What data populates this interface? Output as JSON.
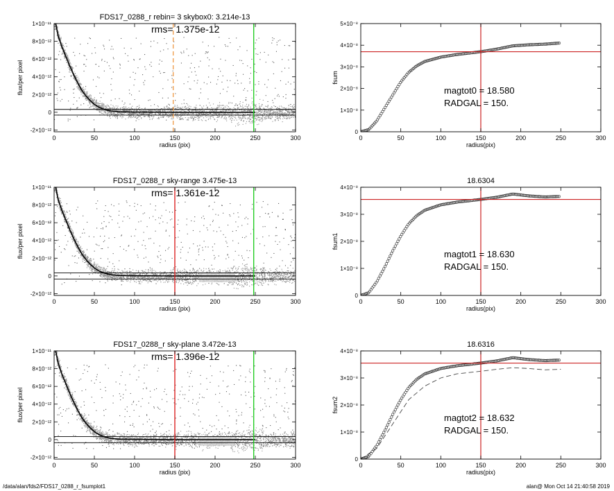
{
  "footer": {
    "path": "/data/alan/fds2/FDS17_0288_r_fsumplot1",
    "stamp": "alan@  Mon Oct 14 21:40:58 2019"
  },
  "chart_data": [
    {
      "type": "scatter",
      "title": "FDS17_0288_r rebin= 3    skybox0:  3.214e-13",
      "annotation": "rms= 1.375e-12",
      "xlabel": "radius (pix)",
      "ylabel": "flux/per pixel",
      "xlim": [
        0,
        300
      ],
      "ylim": [
        -2.2e-12,
        1e-11
      ],
      "xticks": [
        0,
        50,
        100,
        150,
        200,
        250,
        300
      ],
      "yticks": [
        "1×10⁻¹¹",
        "8×10⁻¹²",
        "6×10⁻¹²",
        "4×10⁻¹²",
        "2×10⁻¹²",
        "0",
        "-2×10⁻¹²"
      ],
      "ytick_values": [
        1e-11,
        8e-12,
        6e-12,
        4e-12,
        2e-12,
        0,
        -2e-12
      ],
      "profile_x": [
        2,
        5,
        10,
        15,
        20,
        25,
        30,
        35,
        40,
        45,
        50,
        55,
        60,
        65,
        70,
        80,
        100,
        150,
        200,
        250
      ],
      "profile_y": [
        1e-11,
        8.6e-12,
        7.3e-12,
        6.2e-12,
        5.1e-12,
        4.1e-12,
        3.2e-12,
        2.4e-12,
        1.8e-12,
        1.3e-12,
        9e-13,
        6e-13,
        4e-13,
        2.5e-13,
        1.5e-13,
        5e-14,
        2e-14,
        0,
        0,
        0
      ],
      "hlines": [
        3.214e-13,
        -3.214e-13
      ],
      "vlines": [
        {
          "x": 148,
          "color": "#f0a050",
          "style": "dashed"
        },
        {
          "x": 248,
          "color": "#22cc22",
          "style": "solid"
        }
      ]
    },
    {
      "type": "scatter",
      "title": "",
      "annotation": "magtot0 =  18.580",
      "annotation2": "RADGAL =    150.",
      "xlabel": "radius(pix)",
      "ylabel": "fsum",
      "xlim": [
        0,
        300
      ],
      "ylim": [
        0,
        5e-08
      ],
      "xticks": [
        0,
        50,
        100,
        150,
        200,
        250,
        300
      ],
      "yticks": [
        "5×10⁻⁸",
        "4×10⁻⁸",
        "3×10⁻⁸",
        "2×10⁻⁸",
        "1×10⁻⁸",
        "0"
      ],
      "ytick_values": [
        5e-08,
        4e-08,
        3e-08,
        2e-08,
        1e-08,
        0
      ],
      "x": [
        0,
        10,
        20,
        30,
        40,
        50,
        60,
        70,
        80,
        100,
        120,
        150,
        170,
        190,
        210,
        230,
        248
      ],
      "y": [
        0,
        1e-09,
        5e-09,
        1.1e-08,
        1.7e-08,
        2.3e-08,
        2.75e-08,
        3.05e-08,
        3.25e-08,
        3.45e-08,
        3.57e-08,
        3.7e-08,
        3.82e-08,
        3.97e-08,
        4.02e-08,
        4.05e-08,
        4.1e-08
      ],
      "dashed_x": [],
      "dashed_y": [],
      "hline": 3.7e-08,
      "vline": 150
    },
    {
      "type": "scatter",
      "title": "FDS17_0288_r sky-range  3.475e-13",
      "annotation": "rms= 1.361e-12",
      "xlabel": "radius (pix)",
      "ylabel": "flux/per pixel",
      "xlim": [
        0,
        300
      ],
      "ylim": [
        -2.2e-12,
        1e-11
      ],
      "xticks": [
        0,
        50,
        100,
        150,
        200,
        250,
        300
      ],
      "yticks": [
        "1×10⁻¹¹",
        "8×10⁻¹²",
        "6×10⁻¹²",
        "4×10⁻¹²",
        "2×10⁻¹²",
        "0",
        "-2×10⁻¹²"
      ],
      "ytick_values": [
        1e-11,
        8e-12,
        6e-12,
        4e-12,
        2e-12,
        0,
        -2e-12
      ],
      "profile_x": [
        2,
        5,
        10,
        15,
        20,
        25,
        30,
        35,
        40,
        45,
        50,
        55,
        60,
        65,
        70,
        80,
        100,
        150,
        200,
        250
      ],
      "profile_y": [
        1e-11,
        8.6e-12,
        7.3e-12,
        6.2e-12,
        5.1e-12,
        4.1e-12,
        3.2e-12,
        2.4e-12,
        1.8e-12,
        1.3e-12,
        9e-13,
        6e-13,
        4e-13,
        2.5e-13,
        1.5e-13,
        5e-14,
        2e-14,
        0,
        0,
        0
      ],
      "hlines": [
        3.475e-13,
        -3.475e-13
      ],
      "vlines": [
        {
          "x": 150,
          "color": "#dd2222",
          "style": "solid"
        },
        {
          "x": 248,
          "color": "#22cc22",
          "style": "solid"
        }
      ]
    },
    {
      "type": "scatter",
      "title": "18.6304",
      "annotation": "magtot1 =  18.630",
      "annotation2": "RADGAL =    150.",
      "xlabel": "radius(pix)",
      "ylabel": "fsum1",
      "xlim": [
        0,
        300
      ],
      "ylim": [
        0,
        4e-08
      ],
      "xticks": [
        0,
        50,
        100,
        150,
        200,
        250,
        300
      ],
      "yticks": [
        "4×10⁻⁸",
        "3×10⁻⁸",
        "2×10⁻⁸",
        "1×10⁻⁸",
        "0"
      ],
      "ytick_values": [
        4e-08,
        3e-08,
        2e-08,
        1e-08,
        0
      ],
      "x": [
        0,
        10,
        20,
        30,
        40,
        50,
        60,
        70,
        80,
        100,
        120,
        150,
        170,
        190,
        210,
        230,
        248
      ],
      "y": [
        0,
        1e-09,
        5e-09,
        1.05e-08,
        1.65e-08,
        2.2e-08,
        2.65e-08,
        2.95e-08,
        3.15e-08,
        3.35e-08,
        3.45e-08,
        3.55e-08,
        3.63e-08,
        3.75e-08,
        3.68e-08,
        3.64e-08,
        3.66e-08
      ],
      "dashed_x": [],
      "dashed_y": [],
      "hline": 3.55e-08,
      "vline": 150
    },
    {
      "type": "scatter",
      "title": "FDS17_0288_r sky-plane  3.472e-13",
      "annotation": "rms= 1.396e-12",
      "xlabel": "radius (pix)",
      "ylabel": "flux/per pixel",
      "xlim": [
        0,
        300
      ],
      "ylim": [
        -2.2e-12,
        1e-11
      ],
      "xticks": [
        0,
        50,
        100,
        150,
        200,
        250,
        300
      ],
      "yticks": [
        "1×10⁻¹¹",
        "8×10⁻¹²",
        "6×10⁻¹²",
        "4×10⁻¹²",
        "2×10⁻¹²",
        "0",
        "-2×10⁻¹²"
      ],
      "ytick_values": [
        1e-11,
        8e-12,
        6e-12,
        4e-12,
        2e-12,
        0,
        -2e-12
      ],
      "profile_x": [
        2,
        5,
        10,
        15,
        20,
        25,
        30,
        35,
        40,
        45,
        50,
        55,
        60,
        65,
        70,
        80,
        100,
        150,
        200,
        250
      ],
      "profile_y": [
        1e-11,
        8.6e-12,
        7.3e-12,
        6.2e-12,
        5.1e-12,
        4.1e-12,
        3.2e-12,
        2.4e-12,
        1.8e-12,
        1.3e-12,
        9e-13,
        6e-13,
        4e-13,
        2.5e-13,
        1.5e-13,
        5e-14,
        2e-14,
        0,
        0,
        0
      ],
      "hlines": [
        3.472e-13,
        -3.472e-13
      ],
      "vlines": [
        {
          "x": 150,
          "color": "#dd2222",
          "style": "solid"
        },
        {
          "x": 248,
          "color": "#22cc22",
          "style": "solid"
        }
      ]
    },
    {
      "type": "scatter",
      "title": "18.6316",
      "annotation": "magtot2 =  18.632",
      "annotation2": "RADGAL =    150.",
      "xlabel": "radius(pix)",
      "ylabel": "fsum2",
      "xlim": [
        0,
        300
      ],
      "ylim": [
        0,
        4e-08
      ],
      "xticks": [
        0,
        50,
        100,
        150,
        200,
        250,
        300
      ],
      "yticks": [
        "4×10⁻⁸",
        "3×10⁻⁸",
        "2×10⁻⁸",
        "1×10⁻⁸",
        "0"
      ],
      "ytick_values": [
        4e-08,
        3e-08,
        2e-08,
        1e-08,
        0
      ],
      "x": [
        0,
        10,
        20,
        30,
        40,
        50,
        60,
        70,
        80,
        100,
        120,
        150,
        170,
        190,
        210,
        230,
        248
      ],
      "y": [
        0,
        1e-09,
        5e-09,
        1.05e-08,
        1.65e-08,
        2.2e-08,
        2.65e-08,
        2.95e-08,
        3.15e-08,
        3.35e-08,
        3.45e-08,
        3.55e-08,
        3.63e-08,
        3.75e-08,
        3.68e-08,
        3.64e-08,
        3.66e-08
      ],
      "dashed_x": [
        0,
        20,
        40,
        60,
        80,
        100,
        120,
        150,
        170,
        190,
        210,
        230,
        250
      ],
      "dashed_y": [
        0,
        4e-09,
        1.3e-08,
        2.2e-08,
        2.7e-08,
        3e-08,
        3.15e-08,
        3.25e-08,
        3.32e-08,
        3.38e-08,
        3.35e-08,
        3.3e-08,
        3.32e-08
      ],
      "hline": 3.55e-08,
      "vline": 150
    }
  ]
}
